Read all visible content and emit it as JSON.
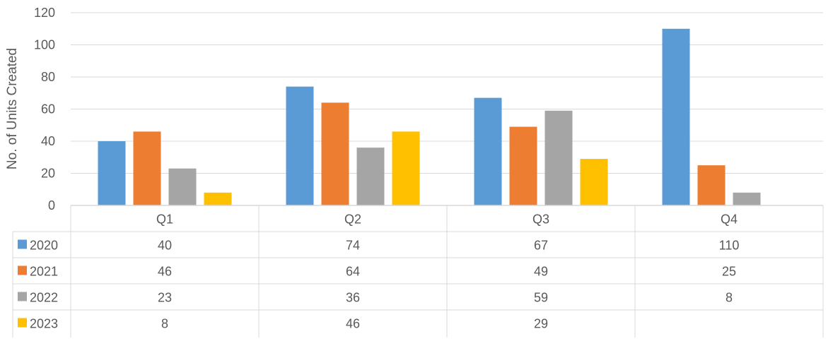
{
  "chart_data": {
    "type": "bar",
    "ylabel": "No. of Units Created",
    "ylim": [
      0,
      120
    ],
    "yticks": [
      0,
      20,
      40,
      60,
      80,
      100,
      120
    ],
    "grid": true,
    "legend": "data-table-left",
    "categories": [
      "Q1",
      "Q2",
      "Q3",
      "Q4"
    ],
    "series": [
      {
        "name": "2020",
        "color": "#5b9bd5",
        "values": [
          40,
          74,
          67,
          110
        ]
      },
      {
        "name": "2021",
        "color": "#ed7d31",
        "values": [
          46,
          64,
          49,
          25
        ]
      },
      {
        "name": "2022",
        "color": "#a5a5a5",
        "values": [
          23,
          36,
          59,
          8
        ]
      },
      {
        "name": "2023",
        "color": "#ffc000",
        "values": [
          8,
          46,
          29,
          null
        ]
      }
    ]
  }
}
